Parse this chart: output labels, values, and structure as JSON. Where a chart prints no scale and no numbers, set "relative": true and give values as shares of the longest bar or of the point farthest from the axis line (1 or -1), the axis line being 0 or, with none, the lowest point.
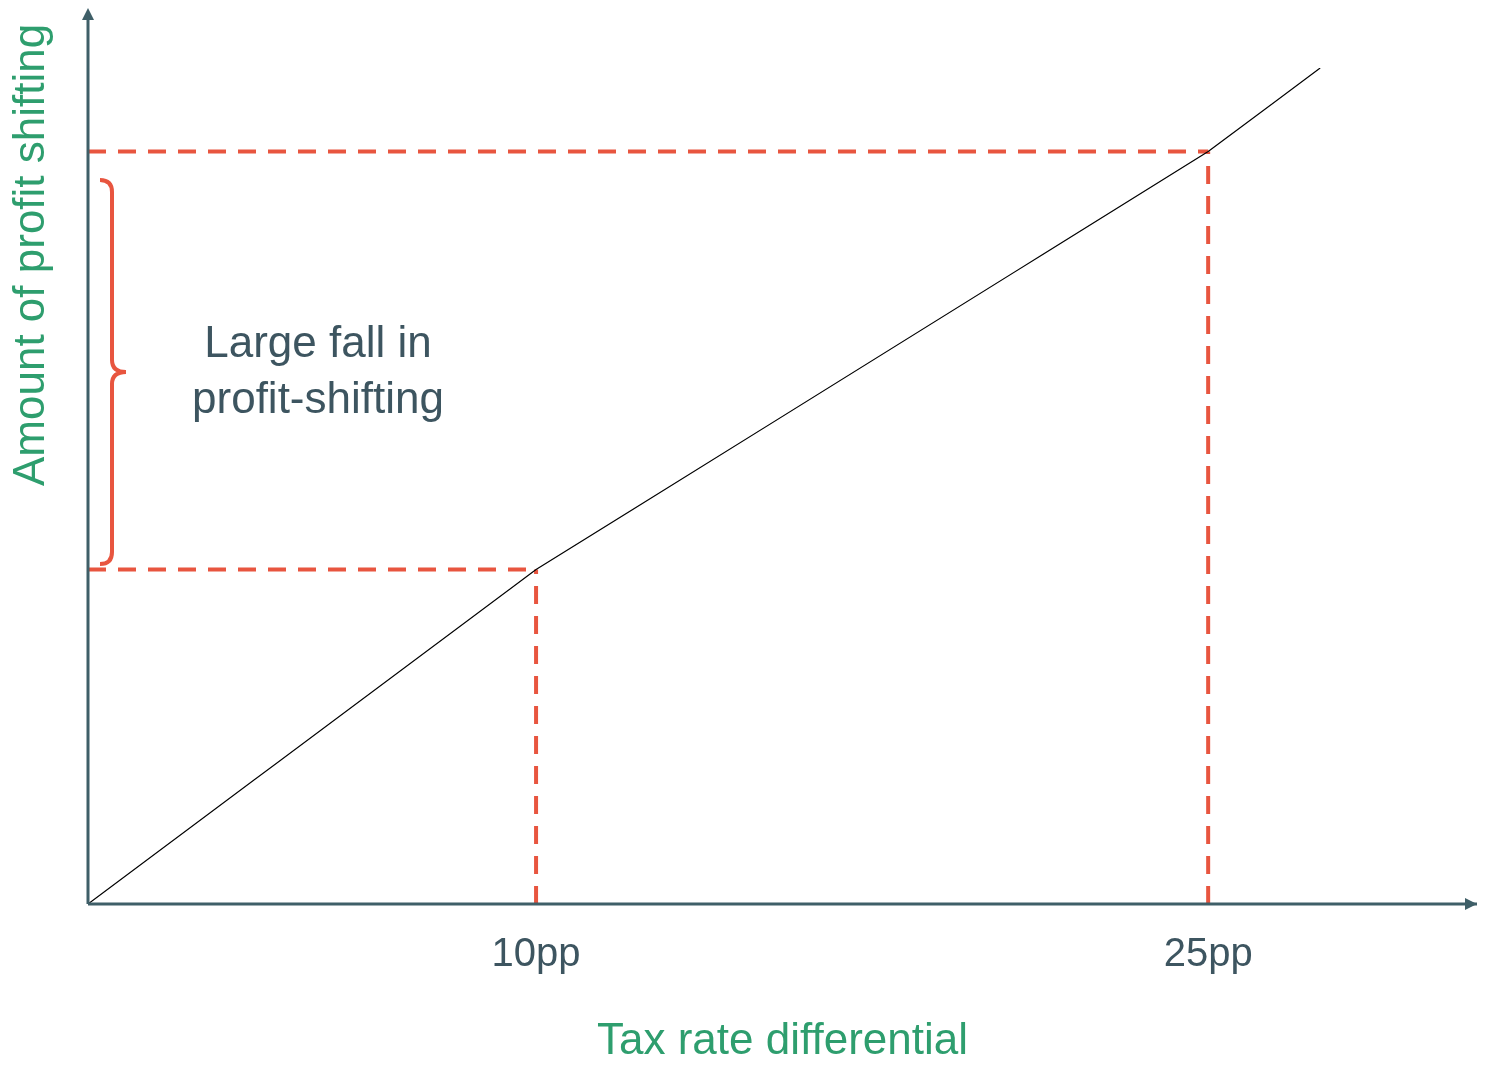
{
  "chart_data": {
    "type": "line",
    "relative": true,
    "xlabel": "Tax rate differential",
    "ylabel": "Amount of profit shifting",
    "x": [
      0,
      10,
      25,
      27.5
    ],
    "series": [
      {
        "color": "#000000",
        "values": [
          0,
          0.4,
          0.9,
          1
        ]
      }
    ],
    "xlim": [
      0,
      31
    ],
    "xticks": [
      {
        "value": 10,
        "label": "10pp"
      },
      {
        "value": 25,
        "label": "25pp"
      }
    ],
    "ref_lines": [
      {
        "axis": "x",
        "value": 10,
        "color": "#e8553f",
        "line_style": "dashed"
      },
      {
        "axis": "x",
        "value": 25,
        "color": "#e8553f",
        "line_style": "dashed"
      },
      {
        "axis": "y",
        "value": 0.4,
        "color": "#e8553f",
        "line_style": "dashed"
      },
      {
        "axis": "y",
        "value": 0.9,
        "color": "#e8553f",
        "line_style": "dashed"
      }
    ],
    "annotations": [
      "Large fall in profit-shifting"
    ],
    "grid": false,
    "legend": false,
    "marker": "none",
    "line_style": "solid"
  }
}
